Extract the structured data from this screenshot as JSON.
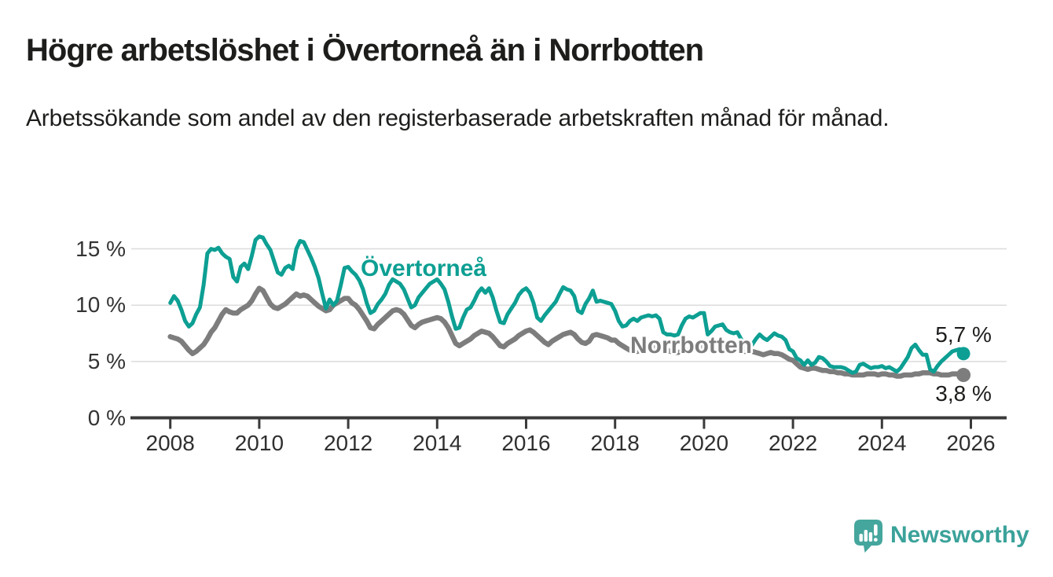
{
  "header": {
    "title": "Högre arbetslöshet i Övertorneå än i Norrbotten",
    "subtitle": "Arbetssökande som andel av den registerbaserade arbetskraften månad för månad."
  },
  "chart_data": {
    "type": "line",
    "title": "Högre arbetslöshet i Övertorneå än i Norrbotten",
    "subtitle": "Arbetssökande som andel av den registerbaserade arbetskraften månad för månad.",
    "unit": "%",
    "x_start_year": 2008,
    "points_per_year": 12,
    "x_note": "monthly values, Jan 2008 - Nov 2025",
    "x_ticks": [
      2008,
      2010,
      2012,
      2014,
      2016,
      2018,
      2020,
      2022,
      2024,
      2026
    ],
    "x_tick_labels": [
      "2008",
      "2010",
      "2012",
      "2014",
      "2016",
      "2018",
      "2020",
      "2022",
      "2024",
      "2026"
    ],
    "y_ticks": [
      {
        "value": 0,
        "label": "0 %"
      },
      {
        "value": 5,
        "label": "5 %"
      },
      {
        "value": 10,
        "label": "10 %"
      },
      {
        "value": 15,
        "label": "15 %"
      }
    ],
    "ylim": [
      0,
      16.5
    ],
    "grid": "horizontal",
    "legend_position": "inline-labels",
    "colors": {
      "overtornea": "#0d9f93",
      "norrbotten": "#7d7d7d",
      "grid": "#dcdcdc",
      "axis": "#3a3a3a"
    },
    "series": [
      {
        "name": "Övertorneå",
        "color": "#0d9f93",
        "end_label": "5,7 %",
        "last_value": 5.7,
        "values": [
          10.2,
          10.8,
          10.4,
          9.6,
          8.6,
          8.1,
          8.4,
          9.2,
          9.8,
          11.8,
          14.6,
          15.0,
          14.9,
          15.1,
          14.6,
          14.3,
          14.1,
          12.5,
          12.1,
          13.4,
          13.7,
          13.2,
          14.4,
          15.8,
          16.1,
          16.0,
          15.4,
          14.9,
          13.9,
          12.9,
          12.7,
          13.3,
          13.5,
          13.2,
          15.0,
          15.7,
          15.6,
          14.9,
          14.2,
          13.4,
          12.4,
          11.0,
          9.7,
          10.5,
          10.0,
          10.4,
          11.8,
          13.3,
          13.4,
          13.0,
          12.7,
          12.2,
          11.4,
          10.2,
          9.3,
          9.5,
          10.1,
          10.5,
          11.0,
          11.8,
          12.3,
          12.1,
          11.9,
          11.4,
          10.6,
          9.8,
          10.0,
          10.7,
          11.1,
          11.5,
          11.9,
          12.1,
          12.3,
          11.9,
          11.4,
          10.3,
          9.0,
          7.9,
          8.0,
          8.9,
          9.6,
          9.8,
          10.4,
          11.1,
          11.5,
          11.1,
          11.5,
          10.7,
          9.5,
          8.5,
          8.4,
          9.2,
          9.7,
          10.2,
          10.9,
          11.3,
          11.5,
          11.1,
          10.2,
          8.9,
          8.6,
          9.1,
          9.5,
          9.9,
          10.3,
          11.0,
          11.6,
          11.4,
          11.3,
          10.8,
          9.5,
          9.3,
          10.1,
          10.6,
          11.3,
          10.3,
          10.4,
          10.3,
          10.2,
          10.1,
          9.5,
          8.6,
          8.1,
          8.2,
          8.6,
          8.8,
          8.6,
          8.9,
          9.0,
          9.1,
          9.0,
          9.1,
          8.8,
          7.6,
          7.4,
          7.4,
          7.3,
          7.4,
          8.2,
          8.8,
          9.0,
          8.9,
          9.1,
          9.3,
          9.3,
          7.4,
          7.7,
          8.1,
          8.2,
          8.3,
          7.8,
          7.6,
          7.5,
          7.6,
          7.0,
          6.4,
          6.3,
          6.5,
          7.0,
          7.4,
          7.1,
          6.9,
          7.2,
          7.5,
          7.3,
          7.2,
          6.9,
          6.1,
          5.9,
          5.3,
          5.1,
          4.7,
          5.1,
          4.7,
          4.9,
          5.4,
          5.3,
          5.0,
          4.6,
          4.5,
          4.5,
          4.5,
          4.4,
          4.2,
          4.0,
          4.1,
          4.7,
          4.8,
          4.6,
          4.4,
          4.5,
          4.5,
          4.6,
          4.4,
          4.5,
          4.3,
          4.1,
          4.4,
          4.9,
          5.4,
          6.2,
          6.5,
          6.0,
          5.6,
          5.6,
          4.3,
          4.1,
          4.6,
          5.0,
          5.3,
          5.6,
          5.9,
          6.0,
          6.1,
          5.7
        ]
      },
      {
        "name": "Norrbotten",
        "color": "#7d7d7d",
        "end_label": "3,8 %",
        "last_value": 3.8,
        "values": [
          7.2,
          7.1,
          7.0,
          6.8,
          6.4,
          6.0,
          5.7,
          5.9,
          6.2,
          6.5,
          7.0,
          7.6,
          8.0,
          8.6,
          9.2,
          9.6,
          9.4,
          9.3,
          9.3,
          9.6,
          9.8,
          10.0,
          10.4,
          11.0,
          11.5,
          11.3,
          10.7,
          10.1,
          9.8,
          9.7,
          9.9,
          10.1,
          10.4,
          10.7,
          11.0,
          10.8,
          10.9,
          10.8,
          10.5,
          10.2,
          9.9,
          9.7,
          9.5,
          9.6,
          10.0,
          10.2,
          10.4,
          10.6,
          10.6,
          10.2,
          10.0,
          9.6,
          9.1,
          8.6,
          8.0,
          7.9,
          8.3,
          8.6,
          8.9,
          9.2,
          9.5,
          9.6,
          9.5,
          9.2,
          8.7,
          8.2,
          8.0,
          8.3,
          8.5,
          8.6,
          8.7,
          8.8,
          8.9,
          8.8,
          8.5,
          8.0,
          7.3,
          6.6,
          6.4,
          6.6,
          6.8,
          7.0,
          7.3,
          7.5,
          7.7,
          7.6,
          7.5,
          7.2,
          6.8,
          6.4,
          6.3,
          6.6,
          6.8,
          7.0,
          7.3,
          7.5,
          7.7,
          7.8,
          7.6,
          7.3,
          7.0,
          6.7,
          6.5,
          6.8,
          7.0,
          7.2,
          7.4,
          7.5,
          7.6,
          7.4,
          7.0,
          6.7,
          6.6,
          6.8,
          7.3,
          7.4,
          7.3,
          7.2,
          7.1,
          6.9,
          6.9,
          6.6,
          6.4,
          6.2,
          6.0,
          5.9,
          5.9,
          6.0,
          6.1,
          6.2,
          6.3,
          6.4,
          6.4,
          6.2,
          6.0,
          5.9,
          5.8,
          5.8,
          5.9,
          6.0,
          6.0,
          6.1,
          6.2,
          6.3,
          6.4,
          6.2,
          6.3,
          6.6,
          6.7,
          6.6,
          6.4,
          6.3,
          6.2,
          6.0,
          5.9,
          5.9,
          5.9,
          5.9,
          5.8,
          5.7,
          5.6,
          5.7,
          5.8,
          5.7,
          5.7,
          5.6,
          5.4,
          5.2,
          5.1,
          4.8,
          4.5,
          4.4,
          4.3,
          4.4,
          4.4,
          4.3,
          4.2,
          4.2,
          4.1,
          4.1,
          4.0,
          4.0,
          3.9,
          3.9,
          3.8,
          3.8,
          3.8,
          3.8,
          3.9,
          3.9,
          3.9,
          3.8,
          3.9,
          3.9,
          3.8,
          3.8,
          3.7,
          3.7,
          3.8,
          3.8,
          3.8,
          3.9,
          3.9,
          4.0,
          4.0,
          4.0,
          3.9,
          3.9,
          3.8,
          3.8,
          3.8,
          3.9,
          3.9,
          3.9,
          3.8
        ]
      }
    ]
  },
  "labels": {
    "overtornea": "Övertorneå",
    "norrbotten": "Norrbotten",
    "end_overtornea": "5,7 %",
    "end_norrbotten": "3,8 %"
  },
  "branding": {
    "logo_text": "Newsworthy",
    "logo_color": "#3ba29a"
  }
}
